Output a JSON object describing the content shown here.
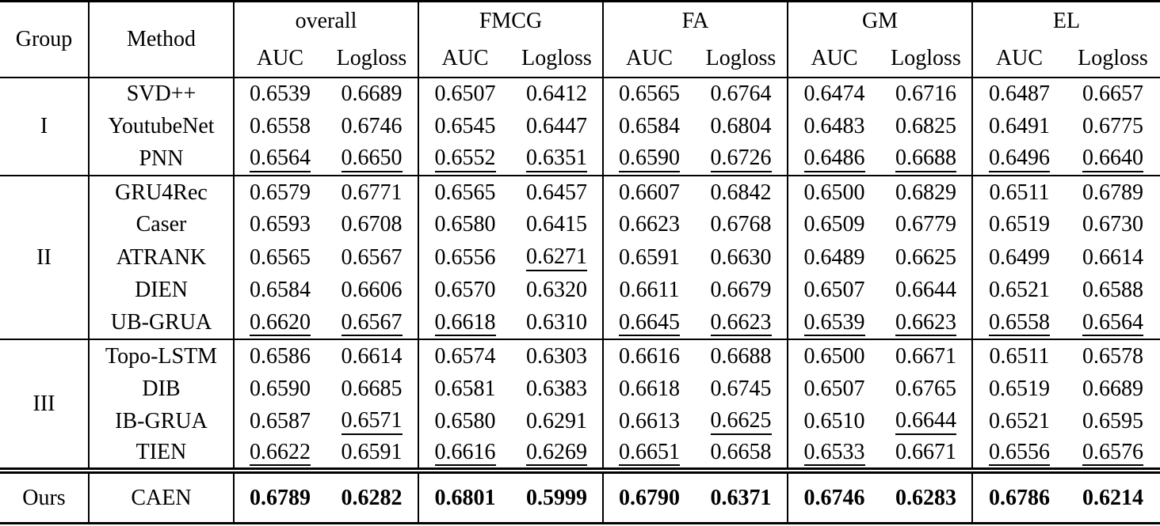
{
  "colors": {
    "background": "#ffffff",
    "text": "#000000",
    "rule": "#000000"
  },
  "table": {
    "columns": {
      "group_label": "Group",
      "method_label": "Method",
      "categories": [
        {
          "label": "overall"
        },
        {
          "label": "FMCG"
        },
        {
          "label": "FA"
        },
        {
          "label": "GM"
        },
        {
          "label": "EL"
        }
      ],
      "metric_labels": [
        "AUC",
        "Logloss"
      ]
    },
    "groups": [
      {
        "label": "I",
        "rows": [
          {
            "method": "SVD++",
            "values": [
              "0.6539",
              "0.6689",
              "0.6507",
              "0.6412",
              "0.6565",
              "0.6764",
              "0.6474",
              "0.6716",
              "0.6487",
              "0.6657"
            ],
            "underlined": [],
            "bold": false
          },
          {
            "method": "YoutubeNet",
            "values": [
              "0.6558",
              "0.6746",
              "0.6545",
              "0.6447",
              "0.6584",
              "0.6804",
              "0.6483",
              "0.6825",
              "0.6491",
              "0.6775"
            ],
            "underlined": [],
            "bold": false
          },
          {
            "method": "PNN",
            "values": [
              "0.6564",
              "0.6650",
              "0.6552",
              "0.6351",
              "0.6590",
              "0.6726",
              "0.6486",
              "0.6688",
              "0.6496",
              "0.6640"
            ],
            "underlined": [
              0,
              1,
              2,
              3,
              4,
              5,
              6,
              7,
              8,
              9
            ],
            "bold": false
          }
        ]
      },
      {
        "label": "II",
        "rows": [
          {
            "method": "GRU4Rec",
            "values": [
              "0.6579",
              "0.6771",
              "0.6565",
              "0.6457",
              "0.6607",
              "0.6842",
              "0.6500",
              "0.6829",
              "0.6511",
              "0.6789"
            ],
            "underlined": [],
            "bold": false
          },
          {
            "method": "Caser",
            "values": [
              "0.6593",
              "0.6708",
              "0.6580",
              "0.6415",
              "0.6623",
              "0.6768",
              "0.6509",
              "0.6779",
              "0.6519",
              "0.6730"
            ],
            "underlined": [],
            "bold": false
          },
          {
            "method": "ATRANK",
            "values": [
              "0.6565",
              "0.6567",
              "0.6556",
              "0.6271",
              "0.6591",
              "0.6630",
              "0.6489",
              "0.6625",
              "0.6499",
              "0.6614"
            ],
            "underlined": [
              3
            ],
            "bold": false
          },
          {
            "method": "DIEN",
            "values": [
              "0.6584",
              "0.6606",
              "0.6570",
              "0.6320",
              "0.6611",
              "0.6679",
              "0.6507",
              "0.6644",
              "0.6521",
              "0.6588"
            ],
            "underlined": [],
            "bold": false
          },
          {
            "method": "UB-GRUA",
            "values": [
              "0.6620",
              "0.6567",
              "0.6618",
              "0.6310",
              "0.6645",
              "0.6623",
              "0.6539",
              "0.6623",
              "0.6558",
              "0.6564"
            ],
            "underlined": [
              0,
              1,
              2,
              4,
              5,
              6,
              7,
              8,
              9
            ],
            "bold": false
          }
        ]
      },
      {
        "label": "III",
        "rows": [
          {
            "method": "Topo-LSTM",
            "values": [
              "0.6586",
              "0.6614",
              "0.6574",
              "0.6303",
              "0.6616",
              "0.6688",
              "0.6500",
              "0.6671",
              "0.6511",
              "0.6578"
            ],
            "underlined": [],
            "bold": false
          },
          {
            "method": "DIB",
            "values": [
              "0.6590",
              "0.6685",
              "0.6581",
              "0.6383",
              "0.6618",
              "0.6745",
              "0.6507",
              "0.6765",
              "0.6519",
              "0.6689"
            ],
            "underlined": [],
            "bold": false
          },
          {
            "method": "IB-GRUA",
            "values": [
              "0.6587",
              "0.6571",
              "0.6580",
              "0.6291",
              "0.6613",
              "0.6625",
              "0.6510",
              "0.6644",
              "0.6521",
              "0.6595"
            ],
            "underlined": [
              1,
              5,
              7
            ],
            "bold": false
          },
          {
            "method": "TIEN",
            "values": [
              "0.6622",
              "0.6591",
              "0.6616",
              "0.6269",
              "0.6651",
              "0.6658",
              "0.6533",
              "0.6671",
              "0.6556",
              "0.6576"
            ],
            "underlined": [
              0,
              2,
              3,
              4,
              6,
              8,
              9
            ],
            "bold": false
          }
        ]
      },
      {
        "label": "Ours",
        "rows": [
          {
            "method": "CAEN",
            "values": [
              "0.6789",
              "0.6282",
              "0.6801",
              "0.5999",
              "0.6790",
              "0.6371",
              "0.6746",
              "0.6283",
              "0.6786",
              "0.6214"
            ],
            "underlined": [],
            "bold": true
          }
        ]
      }
    ]
  }
}
